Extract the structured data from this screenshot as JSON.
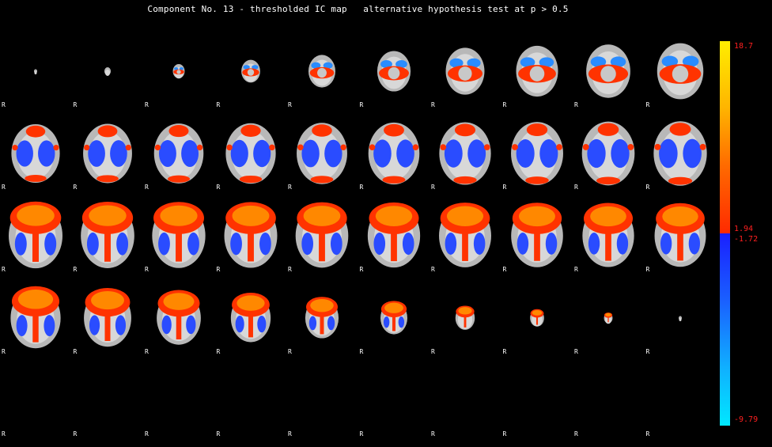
{
  "title": "Component No. 13 - thresholded IC map   alternative hypothesis test at p > 0.5",
  "orientation_marker": "R",
  "colorbar": {
    "max": "18.7",
    "pos_threshold": "1.94",
    "neg_threshold": "-1.72",
    "min": "-9.79",
    "colors": {
      "pos_low": "#ff2a00",
      "pos_high": "#ffee00",
      "neg_low": "#1a20ff",
      "neg_high": "#00e8ff",
      "label": "#ff2020"
    }
  },
  "slices": 40
}
